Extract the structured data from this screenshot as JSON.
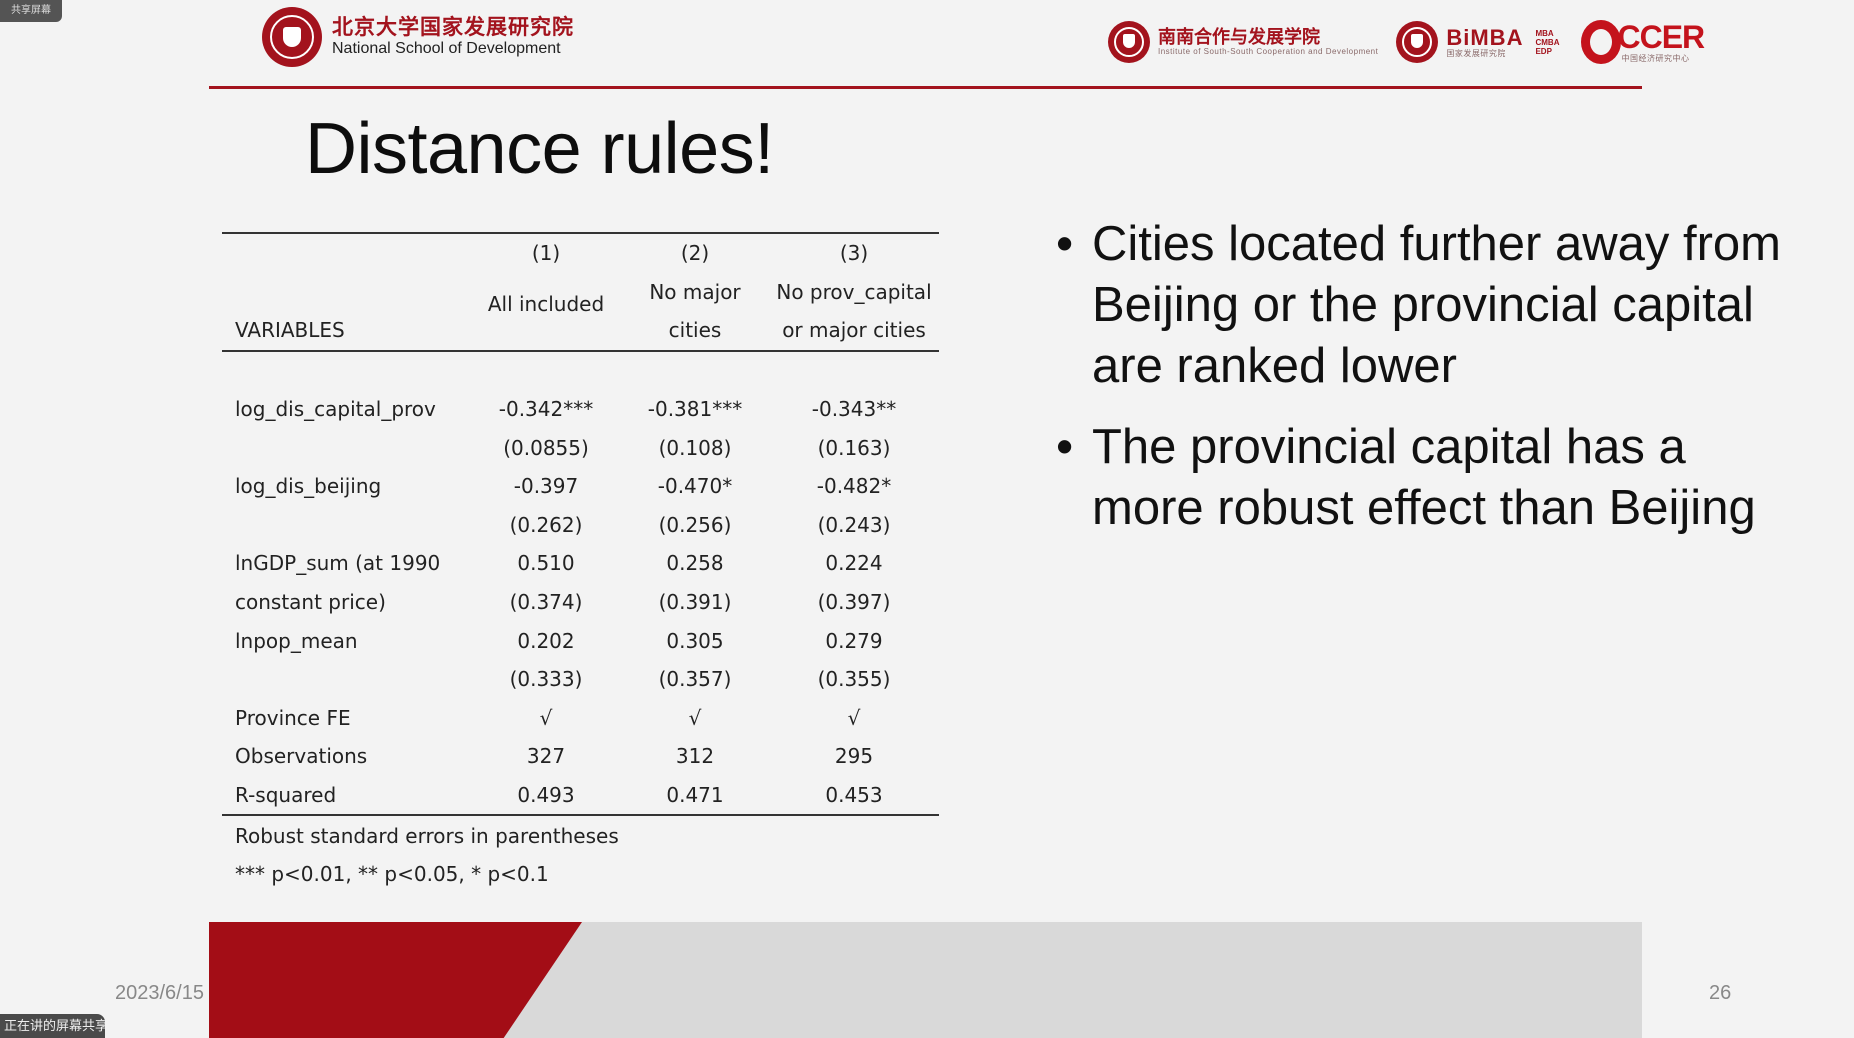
{
  "header": {
    "left_logo": {
      "name_cn": "北京大学国家发展研究院",
      "name_en": "National School of Development"
    },
    "partners": [
      {
        "name_cn": "南南合作与发展学院",
        "subtitle": "Institute of South-South Cooperation and Development"
      },
      {
        "name": "BiMBA",
        "tag": "MBA CMBA EDP",
        "subtitle": "国家发展研究院"
      },
      {
        "name": "CCER",
        "subtitle": "中国经济研究中心"
      }
    ],
    "colors": {
      "brand_red": "#a3131d",
      "cder_red": "#c4131c"
    }
  },
  "slide": {
    "title": "Distance rules!",
    "table": {
      "header_numbers": [
        "(1)",
        "(2)",
        "(3)"
      ],
      "header_desc_line1": [
        "",
        "No major",
        "No prov_capital"
      ],
      "header_desc_line2": [
        "All included",
        "cities",
        "or major cities"
      ],
      "variables_label": "VARIABLES",
      "rows": [
        {
          "label": "log_dis_capital_prov",
          "values": [
            "-0.342***",
            "-0.381***",
            "-0.343**"
          ]
        },
        {
          "label": "",
          "values": [
            "(0.0855)",
            "(0.108)",
            "(0.163)"
          ]
        },
        {
          "label": "log_dis_beijing",
          "values": [
            "-0.397",
            "-0.470*",
            "-0.482*"
          ]
        },
        {
          "label": "",
          "values": [
            "(0.262)",
            "(0.256)",
            "(0.243)"
          ]
        },
        {
          "label": "lnGDP_sum (at 1990",
          "values": [
            "0.510",
            "0.258",
            "0.224"
          ]
        },
        {
          "label": "constant price)",
          "values": [
            "(0.374)",
            "(0.391)",
            "(0.397)"
          ]
        },
        {
          "label": "lnpop_mean",
          "values": [
            "0.202",
            "0.305",
            "0.279"
          ]
        },
        {
          "label": "",
          "values": [
            "(0.333)",
            "(0.357)",
            "(0.355)"
          ]
        },
        {
          "label": "Province FE",
          "values": [
            "√",
            "√",
            "√"
          ]
        },
        {
          "label": "Observations",
          "values": [
            "327",
            "312",
            "295"
          ]
        },
        {
          "label": "R-squared",
          "values": [
            "0.493",
            "0.471",
            "0.453"
          ]
        }
      ],
      "notes": [
        "Robust standard errors in parentheses",
        "*** p<0.01, ** p<0.05, * p<0.1"
      ]
    },
    "bullets": [
      "Cities located further away from Beijing or the provincial capital are ranked lower",
      "The provincial capital has a more robust effect than Beijing"
    ],
    "footer": {
      "date": "2023/6/15",
      "page_number": "26"
    },
    "colors": {
      "footer_red": "#a30d16",
      "footer_gray": "#d9d9d9"
    }
  },
  "overlay": {
    "top_chip": "共享屏幕",
    "bottom_chip": "正在讲的屏幕共享"
  }
}
